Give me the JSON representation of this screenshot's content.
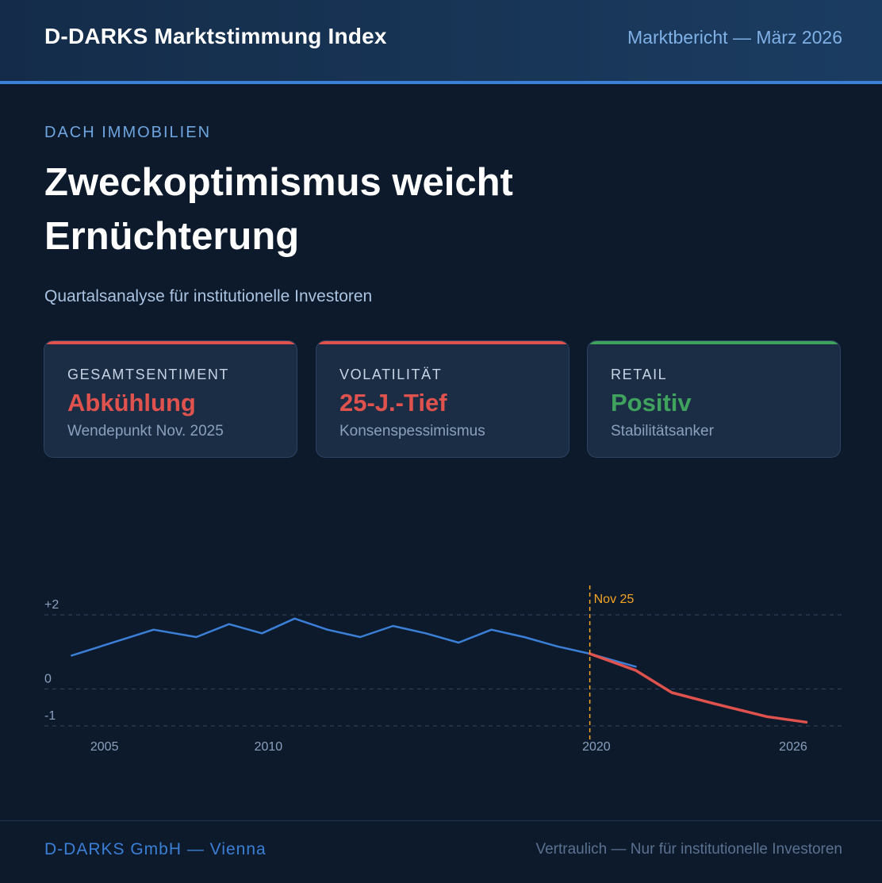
{
  "header": {
    "brand": "D-DARKS Marktstimmung Index",
    "report": "Marktbericht — März 2026"
  },
  "hero": {
    "eyebrow": "DACH IMMOBILIEN",
    "headline": "Zweckoptimismus weicht Ernüchterung",
    "subtitle": "Quartalsanalyse für institutionelle Investoren"
  },
  "cards": [
    {
      "label": "GESAMTSENTIMENT",
      "value": "Abkühlung",
      "note": "Wendepunkt Nov. 2025",
      "accent": "#e0524d"
    },
    {
      "label": "VOLATILITÄT",
      "value": "25-J.-Tief",
      "note": "Konsenspessimismus",
      "accent": "#e0524d"
    },
    {
      "label": "RETAIL",
      "value": "Positiv",
      "note": "Stabilitätsanker",
      "accent": "#3fa35e"
    }
  ],
  "chart_data": {
    "type": "line",
    "title": "",
    "xlabel": "",
    "ylabel": "",
    "x_ticks": [
      2005,
      2010,
      2020,
      2026
    ],
    "y_ticks": [
      {
        "value": 2,
        "label": "+2"
      },
      {
        "value": 0,
        "label": "0"
      },
      {
        "value": -1,
        "label": "-1"
      }
    ],
    "xlim": [
      2003.75,
      2027.5
    ],
    "ylim": [
      -1,
      2
    ],
    "grid": true,
    "series": [
      {
        "color": "#3b7fd6",
        "x": [
          2004,
          2006.5,
          2007.8,
          2008.8,
          2009.8,
          2010.8,
          2011.8,
          2012.8,
          2013.8,
          2014.8,
          2015.8,
          2016.8,
          2017.8,
          2018.8,
          2019.8,
          2021.2
        ],
        "y": [
          0.9,
          1.6,
          1.4,
          1.75,
          1.5,
          1.9,
          1.6,
          1.4,
          1.7,
          1.5,
          1.25,
          1.6,
          1.4,
          1.15,
          0.95,
          0.6
        ]
      },
      {
        "color": "#e0524d",
        "x": [
          2019.8,
          2021.2,
          2022.3,
          2023.6,
          2025.2,
          2026.4
        ],
        "y": [
          0.95,
          0.5,
          -0.1,
          -0.4,
          -0.75,
          -0.9
        ]
      }
    ],
    "annotation": {
      "x": 2019.8,
      "label": "Nov 25",
      "color": "#f4a523"
    }
  },
  "footer": {
    "company": "D-DARKS GmbH — Vienna",
    "confidential": "Vertraulich — Nur für institutionelle Investoren"
  }
}
